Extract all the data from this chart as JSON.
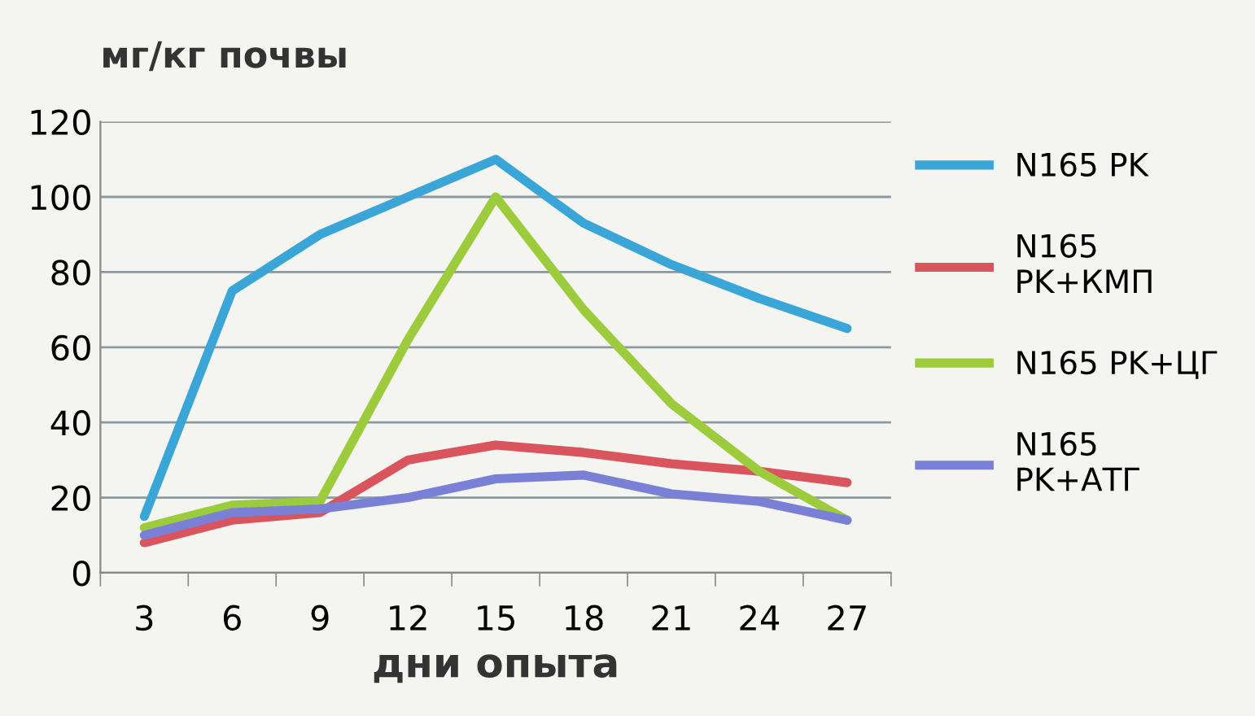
{
  "chart_data": {
    "type": "line",
    "ylabel": "мг/кг почвы",
    "xlabel": "дни опыта",
    "categories": [
      "3",
      "6",
      "9",
      "12",
      "15",
      "18",
      "21",
      "24",
      "27"
    ],
    "series": [
      {
        "name": "N165 PK",
        "color": "#3aa6d8",
        "values": [
          15,
          75,
          90,
          100,
          110,
          93,
          82,
          73,
          65
        ]
      },
      {
        "name": "N165\nPK+КМП",
        "color": "#d9545c",
        "values": [
          8,
          14,
          16,
          30,
          34,
          32,
          29,
          27,
          24
        ]
      },
      {
        "name": "N165 PK+ЦГ",
        "color": "#9ccc3c",
        "values": [
          12,
          18,
          19,
          62,
          100,
          70,
          45,
          27,
          14
        ]
      },
      {
        "name": "N165\nPK+АТГ",
        "color": "#7a80d6",
        "values": [
          10,
          16,
          17,
          20,
          25,
          26,
          21,
          19,
          14
        ]
      }
    ],
    "ylim": [
      0,
      120
    ],
    "yticks": [
      0,
      20,
      40,
      60,
      80,
      100,
      120
    ],
    "grid": "y",
    "legend": "right",
    "marker": "none",
    "line_style": "solid"
  }
}
